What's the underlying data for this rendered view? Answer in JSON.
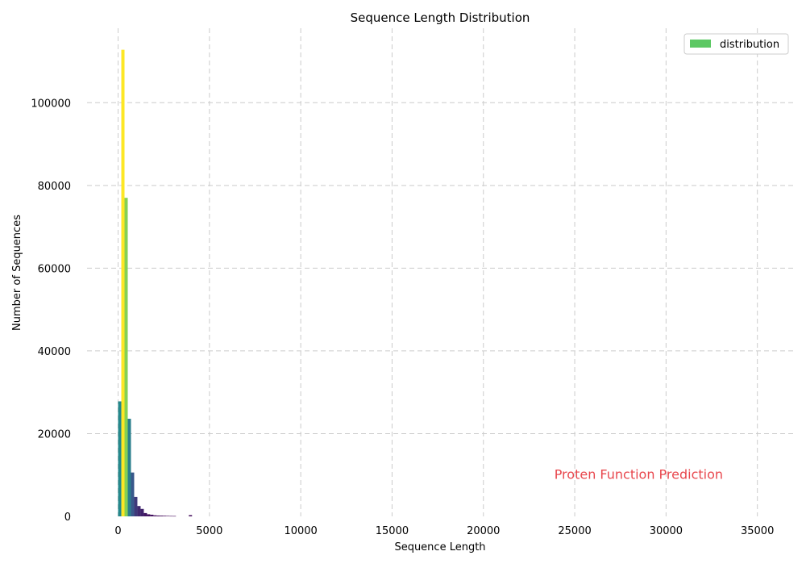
{
  "chart_data": {
    "type": "bar",
    "title": "Sequence Length Distribution",
    "xlabel": "Sequence Length",
    "ylabel": "Number of Sequences",
    "xlim": [
      -1700,
      37000
    ],
    "ylim": [
      0,
      118000
    ],
    "x_ticks": [
      0,
      5000,
      10000,
      15000,
      20000,
      25000,
      30000,
      35000
    ],
    "y_ticks": [
      0,
      20000,
      40000,
      60000,
      80000,
      100000
    ],
    "grid": true,
    "legend": {
      "placement": "top-right",
      "entries": [
        {
          "label": "distribution",
          "color": "#5cc863"
        }
      ]
    },
    "annotation": {
      "text": "Proten Function Prediction",
      "x": 28500,
      "y": 10000,
      "color": "#e8474d"
    },
    "bin_width": 176,
    "bins": [
      {
        "x": 0,
        "value": 27800
      },
      {
        "x": 176,
        "value": 112800
      },
      {
        "x": 352,
        "value": 77000
      },
      {
        "x": 528,
        "value": 23600
      },
      {
        "x": 704,
        "value": 10600
      },
      {
        "x": 880,
        "value": 4700
      },
      {
        "x": 1056,
        "value": 2500
      },
      {
        "x": 1232,
        "value": 1800
      },
      {
        "x": 1408,
        "value": 800
      },
      {
        "x": 1584,
        "value": 500
      },
      {
        "x": 1760,
        "value": 400
      },
      {
        "x": 1936,
        "value": 250
      },
      {
        "x": 2112,
        "value": 200
      },
      {
        "x": 2288,
        "value": 180
      },
      {
        "x": 2464,
        "value": 150
      },
      {
        "x": 2640,
        "value": 120
      },
      {
        "x": 2816,
        "value": 100
      },
      {
        "x": 2992,
        "value": 90
      },
      {
        "x": 3872,
        "value": 300
      }
    ]
  }
}
